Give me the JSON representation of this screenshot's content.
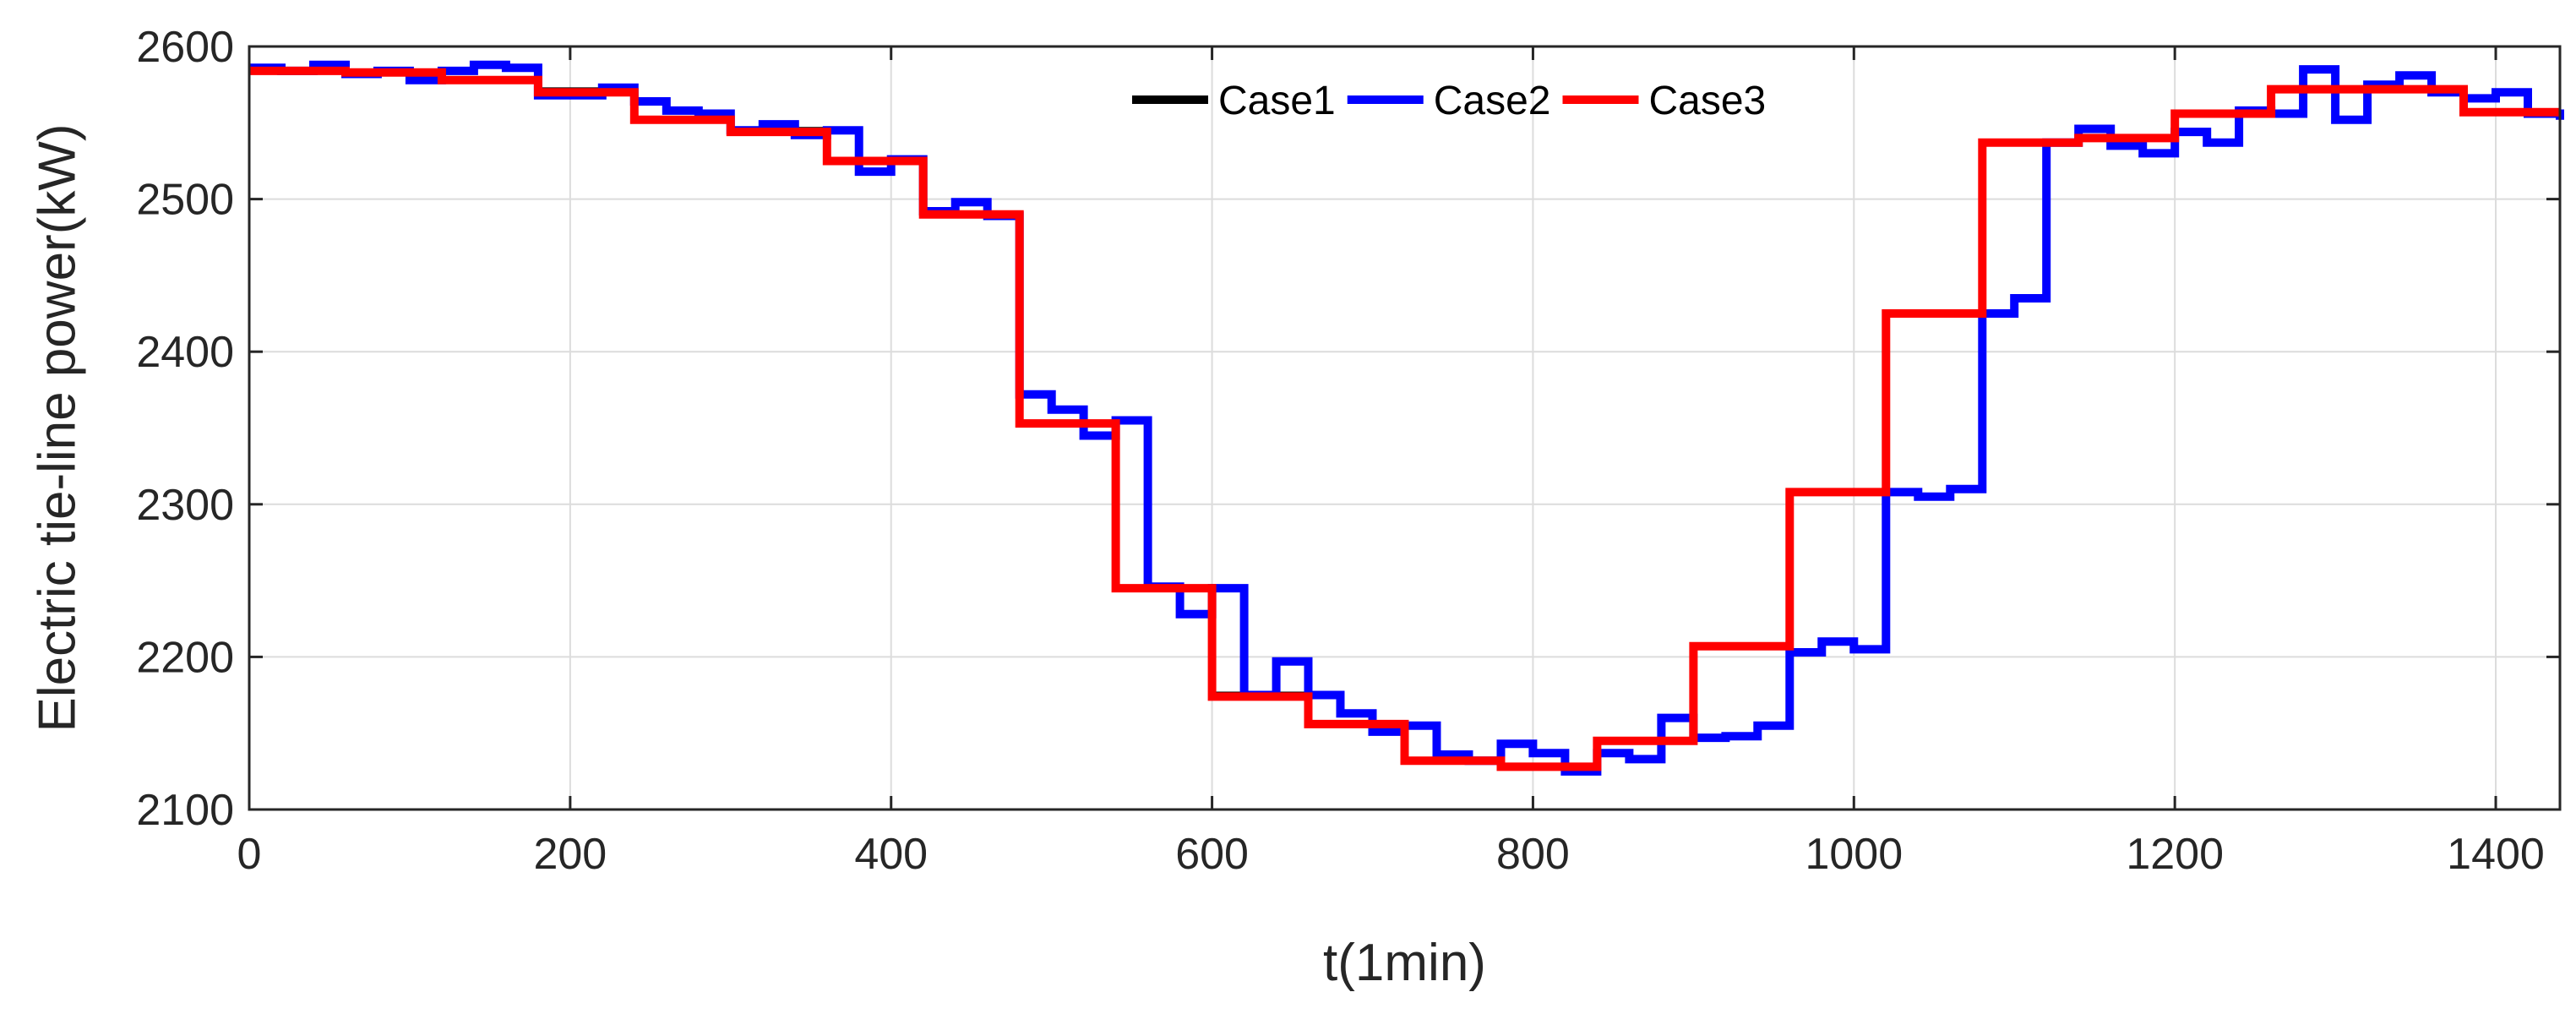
{
  "chart_data": {
    "type": "line",
    "title": "",
    "xlabel": "t(1min)",
    "ylabel": "Electric tie-line power(kW)",
    "xlim": [
      0,
      1440
    ],
    "ylim": [
      2100,
      2600
    ],
    "xticks": [
      0,
      200,
      400,
      600,
      800,
      1000,
      1200,
      1400
    ],
    "yticks": [
      2100,
      2200,
      2300,
      2400,
      2500,
      2600
    ],
    "grid": true,
    "legend_position": "top-center",
    "series": [
      {
        "name": "Case1",
        "color": "#000000",
        "style": "step",
        "x": [
          0,
          60,
          120,
          180,
          240,
          300,
          360,
          420,
          480,
          540,
          600,
          660,
          720,
          780,
          840,
          900,
          960,
          1020,
          1080,
          1140,
          1200,
          1260,
          1320,
          1380,
          1440
        ],
        "y": [
          2584,
          2583,
          2578,
          2571,
          2552,
          2545,
          2525,
          2490,
          2353,
          2245,
          2175,
          2156,
          2132,
          2128,
          2145,
          2207,
          2308,
          2425,
          2537,
          2540,
          2556,
          2572,
          2572,
          2557,
          2557
        ]
      },
      {
        "name": "Case2",
        "color": "#0000ff",
        "style": "step",
        "x": [
          0,
          20,
          40,
          60,
          80,
          100,
          120,
          140,
          160,
          180,
          200,
          220,
          240,
          260,
          280,
          300,
          320,
          340,
          360,
          380,
          400,
          420,
          440,
          460,
          480,
          500,
          520,
          540,
          560,
          580,
          600,
          620,
          640,
          660,
          680,
          700,
          720,
          740,
          760,
          780,
          800,
          820,
          840,
          860,
          880,
          900,
          920,
          940,
          960,
          980,
          1000,
          1020,
          1040,
          1060,
          1080,
          1100,
          1120,
          1140,
          1160,
          1180,
          1200,
          1220,
          1240,
          1260,
          1280,
          1300,
          1320,
          1340,
          1360,
          1380,
          1400,
          1420,
          1440
        ],
        "y": [
          2586,
          2584,
          2588,
          2582,
          2584,
          2578,
          2584,
          2588,
          2586,
          2568,
          2568,
          2573,
          2564,
          2558,
          2556,
          2545,
          2549,
          2542,
          2545,
          2518,
          2526,
          2492,
          2498,
          2489,
          2372,
          2362,
          2345,
          2355,
          2246,
          2228,
          2245,
          2175,
          2197,
          2175,
          2163,
          2151,
          2155,
          2136,
          2132,
          2143,
          2137,
          2125,
          2137,
          2133,
          2160,
          2147,
          2148,
          2155,
          2203,
          2210,
          2205,
          2308,
          2305,
          2310,
          2425,
          2435,
          2537,
          2546,
          2535,
          2530,
          2544,
          2537,
          2558,
          2556,
          2585,
          2552,
          2575,
          2581,
          2570,
          2566,
          2570,
          2556,
          2552
        ]
      },
      {
        "name": "Case3",
        "color": "#ff0000",
        "style": "step",
        "x": [
          0,
          60,
          120,
          180,
          240,
          300,
          360,
          420,
          480,
          540,
          600,
          660,
          720,
          780,
          840,
          900,
          960,
          1020,
          1080,
          1140,
          1200,
          1260,
          1320,
          1380,
          1440
        ],
        "y": [
          2584,
          2583,
          2578,
          2570,
          2552,
          2544,
          2525,
          2490,
          2353,
          2245,
          2174,
          2156,
          2132,
          2128,
          2145,
          2207,
          2308,
          2425,
          2537,
          2540,
          2556,
          2572,
          2572,
          2557,
          2557
        ]
      }
    ]
  }
}
